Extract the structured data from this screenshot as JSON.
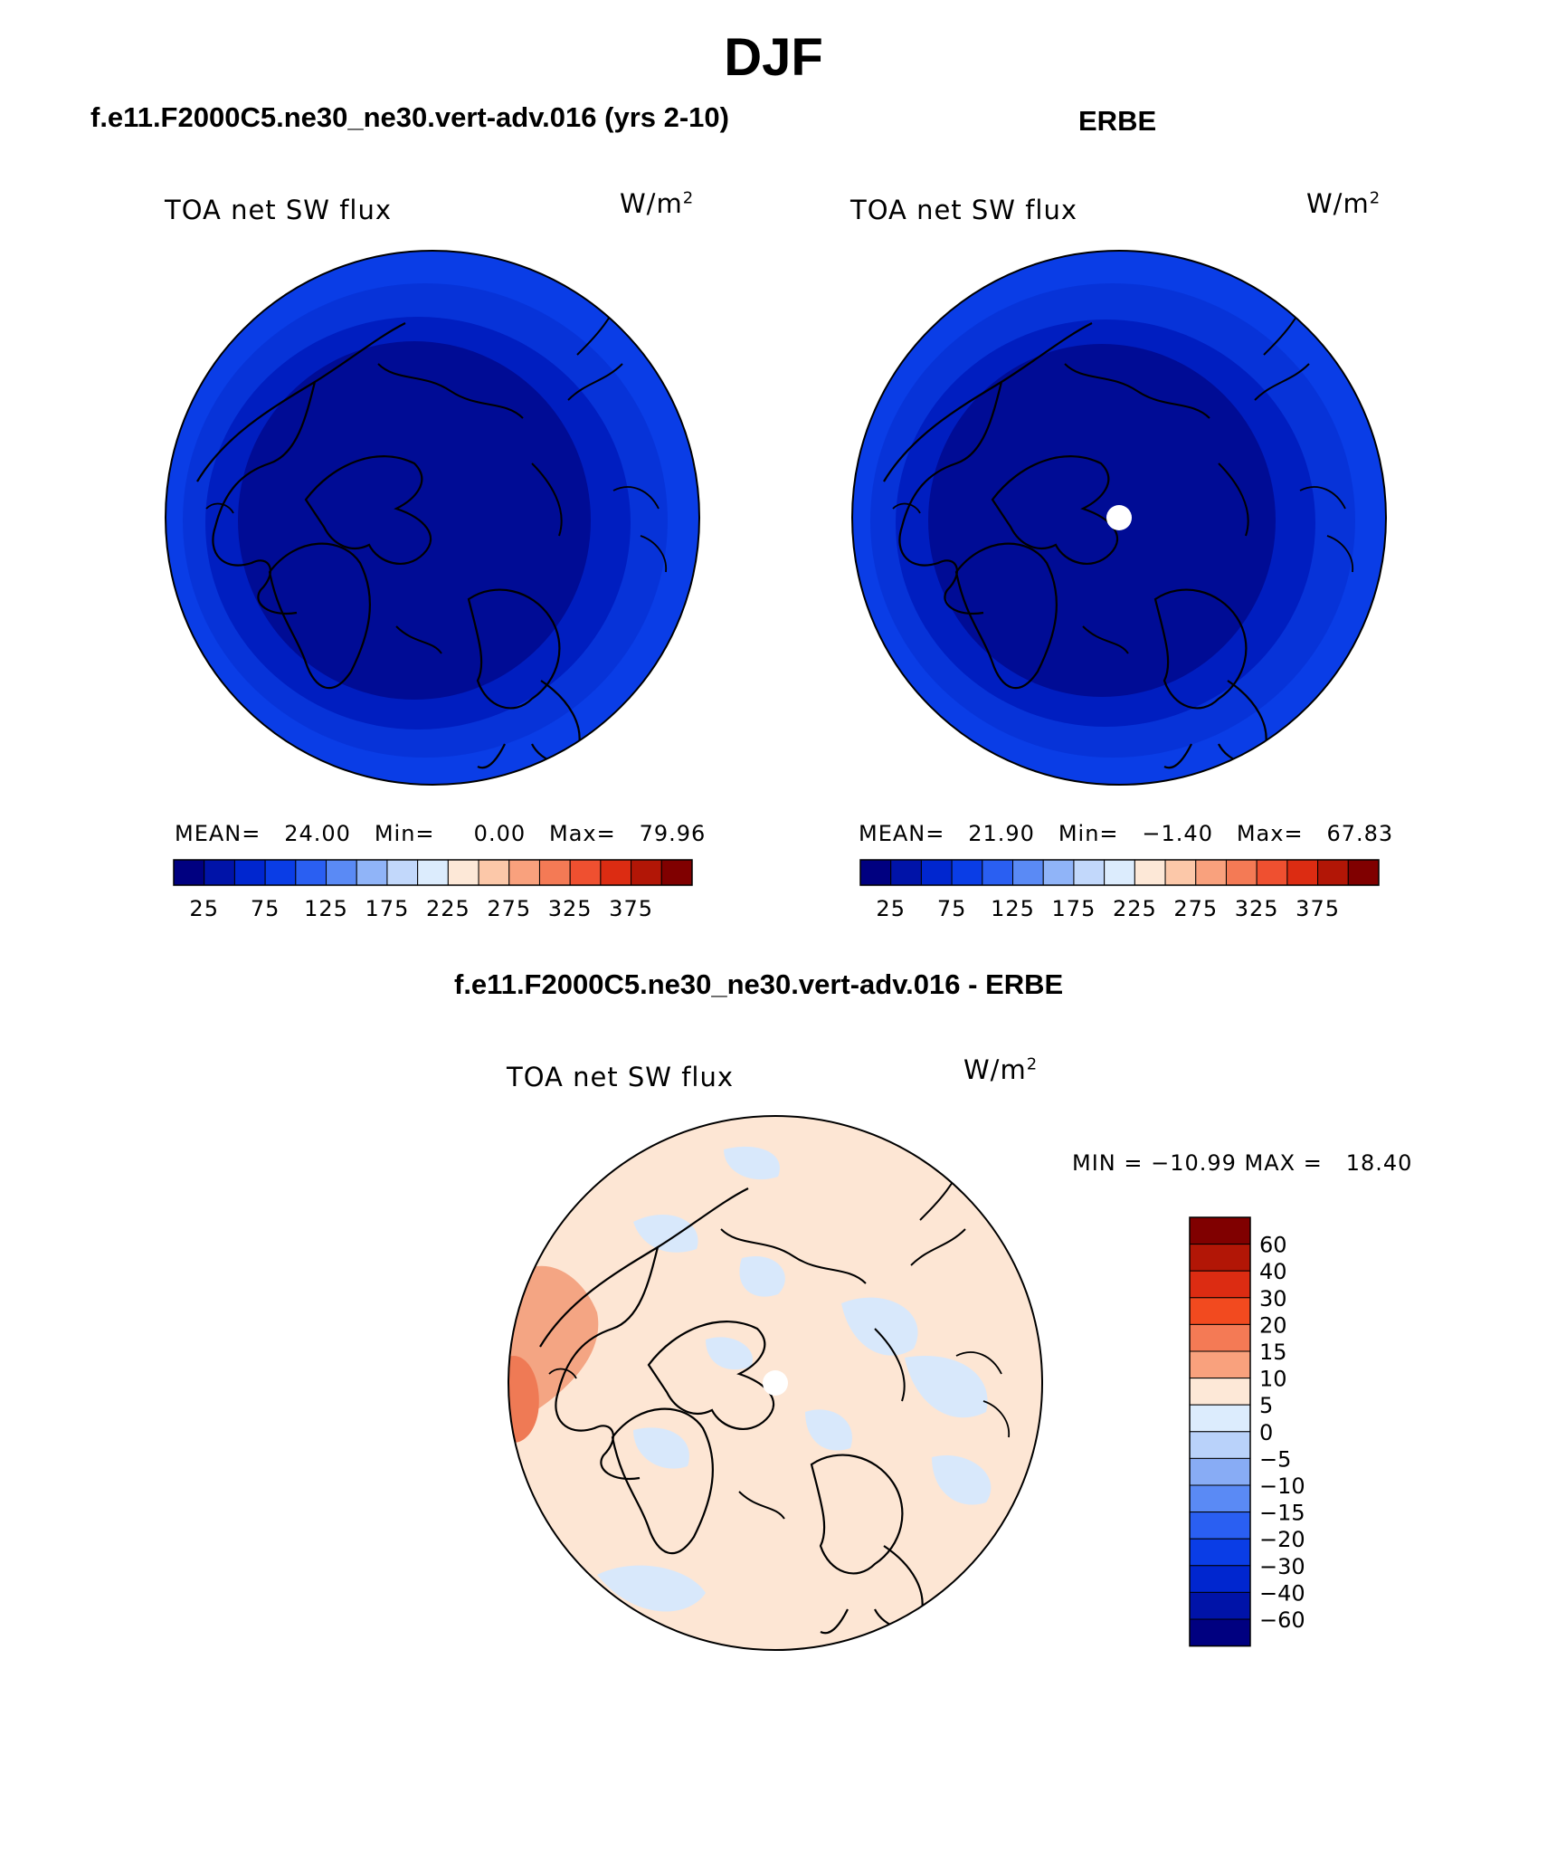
{
  "main_title": "DJF",
  "panels": [
    {
      "title": "f.e11.F2000C5.ne30_ne30.vert-adv.016 (yrs 2-10)",
      "variable_label": "TOA net SW flux",
      "units_base": "W/m",
      "units_exp": "2",
      "stats_text": "MEAN=   24.00   Min=     0.00   Max=   79.96",
      "stats": {
        "mean": 24.0,
        "min": 0.0,
        "max": 79.96
      },
      "pole_missing": false
    },
    {
      "title": "ERBE",
      "variable_label": "TOA net SW flux",
      "units_base": "W/m",
      "units_exp": "2",
      "stats_text": "MEAN=   21.90   Min=   −1.40   Max=   67.83",
      "stats": {
        "mean": 21.9,
        "min": -1.4,
        "max": 67.83
      },
      "pole_missing": true
    }
  ],
  "diff_panel": {
    "title": "f.e11.F2000C5.ne30_ne30.vert-adv.016 - ERBE",
    "variable_label": "TOA net SW flux",
    "units_base": "W/m",
    "units_exp": "2",
    "minmax_text": "MIN = −10.99 MAX =   18.40",
    "min": -10.99,
    "max": 18.4
  },
  "abs_colorbar": {
    "tick_labels": [
      "25",
      "75",
      "125",
      "175",
      "225",
      "275",
      "325",
      "375"
    ],
    "colors": [
      "#000080",
      "#0013a8",
      "#0026cf",
      "#0a3de6",
      "#2a5ff2",
      "#5a8af5",
      "#90b4f8",
      "#c2d8fb",
      "#dcecfd",
      "#fde8d7",
      "#fcc8a9",
      "#f9a17d",
      "#f47a55",
      "#ef5030",
      "#dc2c12",
      "#b21606",
      "#800000"
    ]
  },
  "diff_colorbar": {
    "tick_labels": [
      "60",
      "40",
      "30",
      "20",
      "15",
      "10",
      "5",
      "0",
      "−5",
      "−10",
      "−15",
      "−20",
      "−30",
      "−40",
      "−60"
    ],
    "colors": [
      "#800000",
      "#b21606",
      "#dc2c12",
      "#f24a1f",
      "#f47a55",
      "#f9a17d",
      "#fde8d7",
      "#dcecfd",
      "#b9d2fa",
      "#88acf5",
      "#5a8af5",
      "#2a5ff2",
      "#0a3de6",
      "#0026cf",
      "#0013a8",
      "#000080"
    ]
  },
  "colors": {
    "band_low": "#000c95",
    "band_mid": "#001ec0",
    "band_high": "#0733d8",
    "band_edge": "#0a3de6",
    "diff_pos": "#fde6d4",
    "diff_neg": "#d8e8fb",
    "diff_pos_strong": "#f4a583",
    "diff_pos_stronger": "#ef7a55"
  }
}
